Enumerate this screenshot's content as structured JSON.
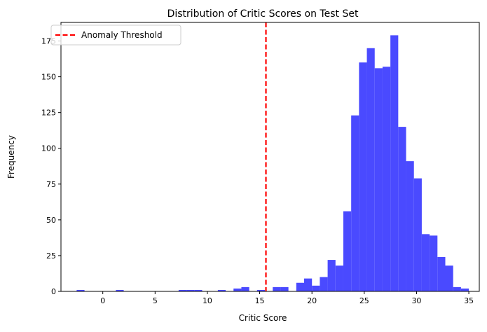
{
  "chart_data": {
    "type": "histogram",
    "title": "Distribution of Critic Scores on Test Set",
    "xlabel": "Critic Score",
    "ylabel": "Frequency",
    "xlim": [
      -4.0,
      36.0
    ],
    "ylim": [
      0,
      188
    ],
    "xticks": [
      0,
      5,
      10,
      15,
      20,
      25,
      30,
      35
    ],
    "yticks": [
      0,
      25,
      50,
      75,
      100,
      125,
      150,
      175
    ],
    "grid": false,
    "legend_position": "upper-left",
    "bar_color": "#4a4aff",
    "bars": [
      {
        "x0": -2.5,
        "x1": -1.75,
        "value": 1
      },
      {
        "x0": 1.25,
        "x1": 2.0,
        "value": 1
      },
      {
        "x0": 7.25,
        "x1": 8.0,
        "value": 1
      },
      {
        "x0": 8.0,
        "x1": 8.75,
        "value": 1
      },
      {
        "x0": 8.75,
        "x1": 9.5,
        "value": 1
      },
      {
        "x0": 11.0,
        "x1": 11.75,
        "value": 1
      },
      {
        "x0": 12.5,
        "x1": 13.25,
        "value": 2
      },
      {
        "x0": 13.25,
        "x1": 14.0,
        "value": 3
      },
      {
        "x0": 14.75,
        "x1": 15.5,
        "value": 1
      },
      {
        "x0": 16.25,
        "x1": 17.0,
        "value": 3
      },
      {
        "x0": 17.0,
        "x1": 17.75,
        "value": 3
      },
      {
        "x0": 18.5,
        "x1": 19.25,
        "value": 6
      },
      {
        "x0": 19.25,
        "x1": 20.0,
        "value": 9
      },
      {
        "x0": 20.0,
        "x1": 20.75,
        "value": 4
      },
      {
        "x0": 20.75,
        "x1": 21.5,
        "value": 10
      },
      {
        "x0": 21.5,
        "x1": 22.25,
        "value": 22
      },
      {
        "x0": 22.25,
        "x1": 23.0,
        "value": 18
      },
      {
        "x0": 23.0,
        "x1": 23.75,
        "value": 56
      },
      {
        "x0": 23.75,
        "x1": 24.5,
        "value": 123
      },
      {
        "x0": 24.5,
        "x1": 25.25,
        "value": 160
      },
      {
        "x0": 25.25,
        "x1": 26.0,
        "value": 170
      },
      {
        "x0": 26.0,
        "x1": 26.75,
        "value": 156
      },
      {
        "x0": 26.75,
        "x1": 27.5,
        "value": 157
      },
      {
        "x0": 27.5,
        "x1": 28.25,
        "value": 179
      },
      {
        "x0": 28.25,
        "x1": 29.0,
        "value": 115
      },
      {
        "x0": 29.0,
        "x1": 29.75,
        "value": 91
      },
      {
        "x0": 29.75,
        "x1": 30.5,
        "value": 79
      },
      {
        "x0": 30.5,
        "x1": 31.25,
        "value": 40
      },
      {
        "x0": 31.25,
        "x1": 32.0,
        "value": 39
      },
      {
        "x0": 32.0,
        "x1": 32.75,
        "value": 24
      },
      {
        "x0": 32.75,
        "x1": 33.5,
        "value": 18
      },
      {
        "x0": 33.5,
        "x1": 34.25,
        "value": 3
      },
      {
        "x0": 34.25,
        "x1": 35.0,
        "value": 2
      }
    ],
    "threshold": {
      "value": 15.6,
      "label": "Anomaly Threshold",
      "color": "#ff0000",
      "style": "dashed"
    }
  }
}
